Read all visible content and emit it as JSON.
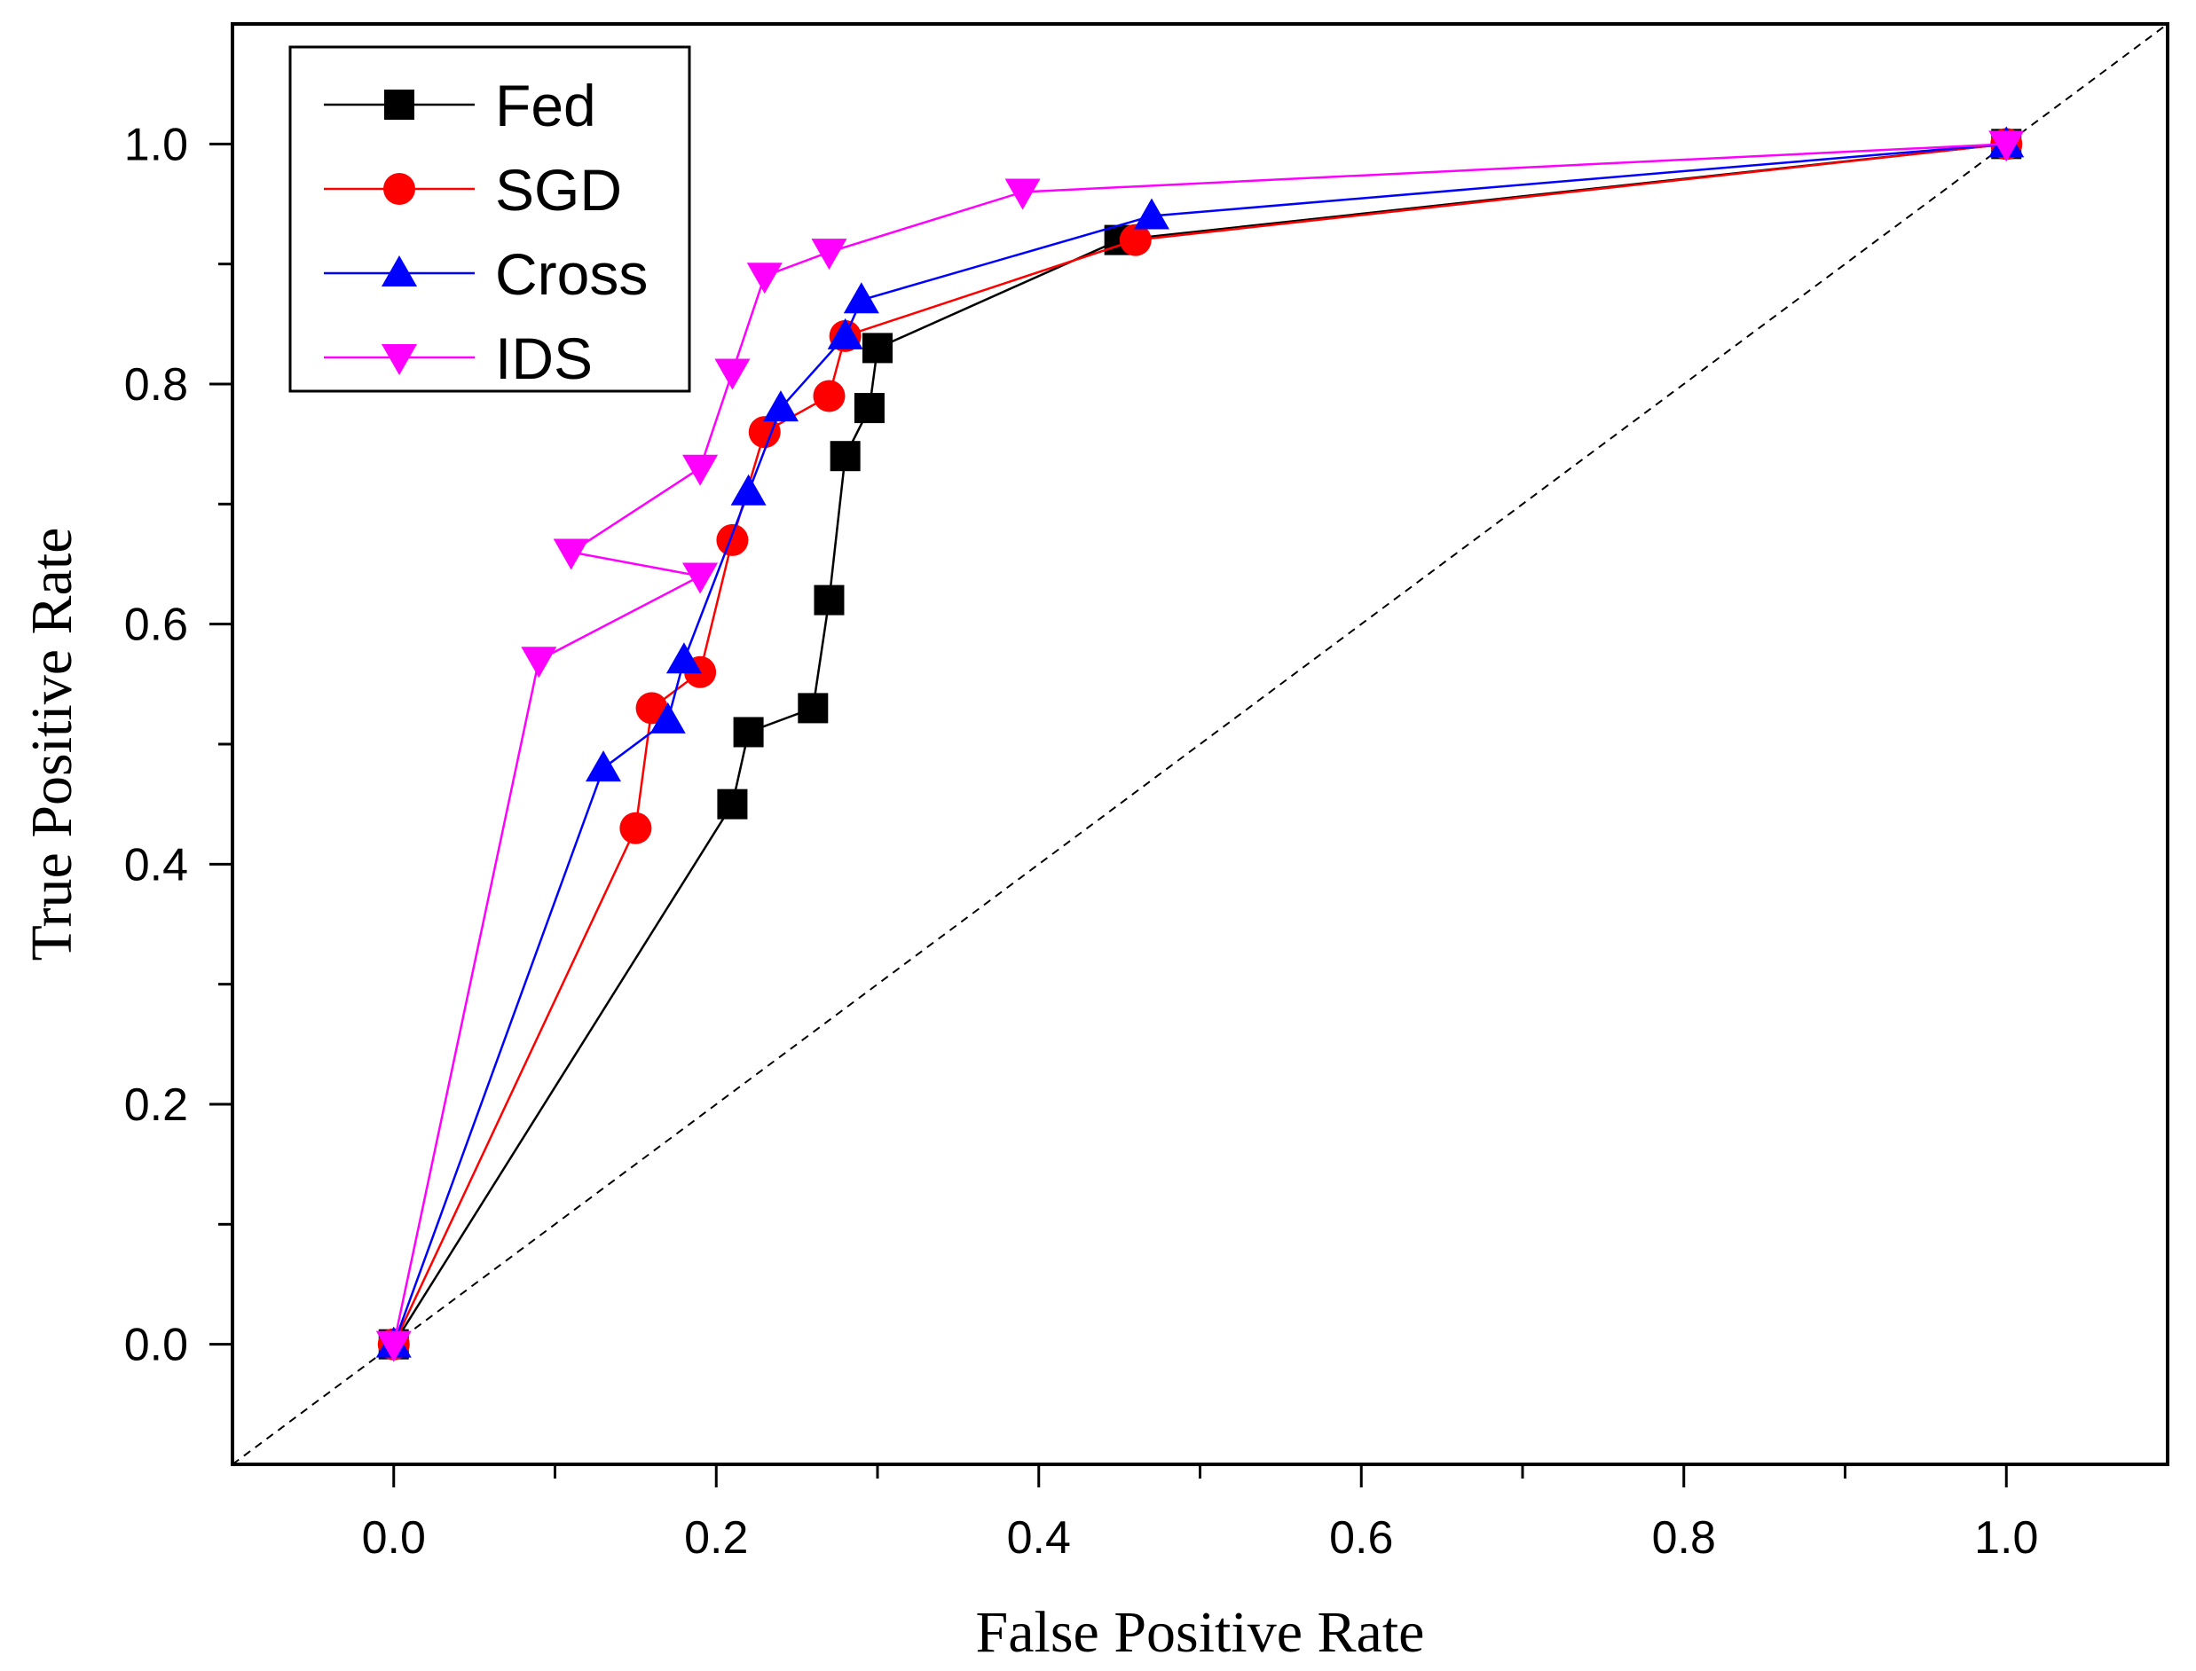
{
  "chart_data": {
    "type": "line",
    "title": "",
    "xlabel": "False Positive Rate",
    "ylabel": "True Positive Rate",
    "xlim": [
      -0.1,
      1.1
    ],
    "ylim": [
      -0.1,
      1.1
    ],
    "xticks": [
      "0.0",
      "0.2",
      "0.4",
      "0.6",
      "0.8",
      "1.0"
    ],
    "yticks": [
      "0.0",
      "0.2",
      "0.4",
      "0.6",
      "0.8",
      "1.0"
    ],
    "legend_position": "top-left",
    "diagonal_reference": {
      "style": "dashed",
      "color": "#000000"
    },
    "series": [
      {
        "name": "Fed",
        "color": "#000000",
        "marker": "square",
        "x": [
          0.0,
          0.21,
          0.22,
          0.26,
          0.27,
          0.28,
          0.295,
          0.3,
          0.45,
          1.0
        ],
        "y": [
          0.0,
          0.45,
          0.51,
          0.53,
          0.62,
          0.74,
          0.78,
          0.83,
          0.92,
          1.0
        ]
      },
      {
        "name": "SGD",
        "color": "#ff0000",
        "marker": "circle",
        "x": [
          0.0,
          0.15,
          0.16,
          0.19,
          0.21,
          0.23,
          0.27,
          0.28,
          0.46,
          1.0
        ],
        "y": [
          0.0,
          0.43,
          0.53,
          0.56,
          0.67,
          0.76,
          0.79,
          0.84,
          0.92,
          1.0
        ]
      },
      {
        "name": "Cross",
        "color": "#0000ff",
        "marker": "triangle-up",
        "x": [
          0.0,
          0.13,
          0.17,
          0.18,
          0.22,
          0.24,
          0.28,
          0.29,
          0.47,
          1.0
        ],
        "y": [
          0.0,
          0.48,
          0.52,
          0.57,
          0.71,
          0.78,
          0.84,
          0.87,
          0.94,
          1.0
        ]
      },
      {
        "name": "IDS",
        "color": "#ff00ff",
        "marker": "triangle-down",
        "x": [
          0.0,
          0.09,
          0.19,
          0.11,
          0.19,
          0.21,
          0.23,
          0.27,
          0.39,
          1.0
        ],
        "y": [
          0.0,
          0.57,
          0.64,
          0.66,
          0.73,
          0.81,
          0.89,
          0.91,
          0.96,
          1.0
        ]
      }
    ]
  }
}
